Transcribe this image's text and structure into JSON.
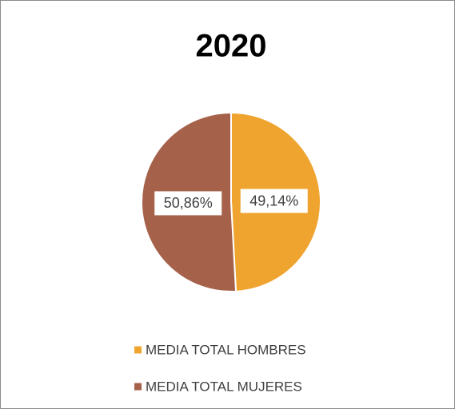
{
  "chart_data": {
    "type": "pie",
    "title": "2020",
    "categories": [
      "MEDIA TOTAL HOMBRES",
      "MEDIA TOTAL MUJERES"
    ],
    "values": [
      49.14,
      50.86
    ],
    "value_labels": [
      "49,14%",
      "50,86%"
    ],
    "colors": [
      "#f0a430",
      "#a5614a"
    ],
    "legend": "bottom"
  }
}
